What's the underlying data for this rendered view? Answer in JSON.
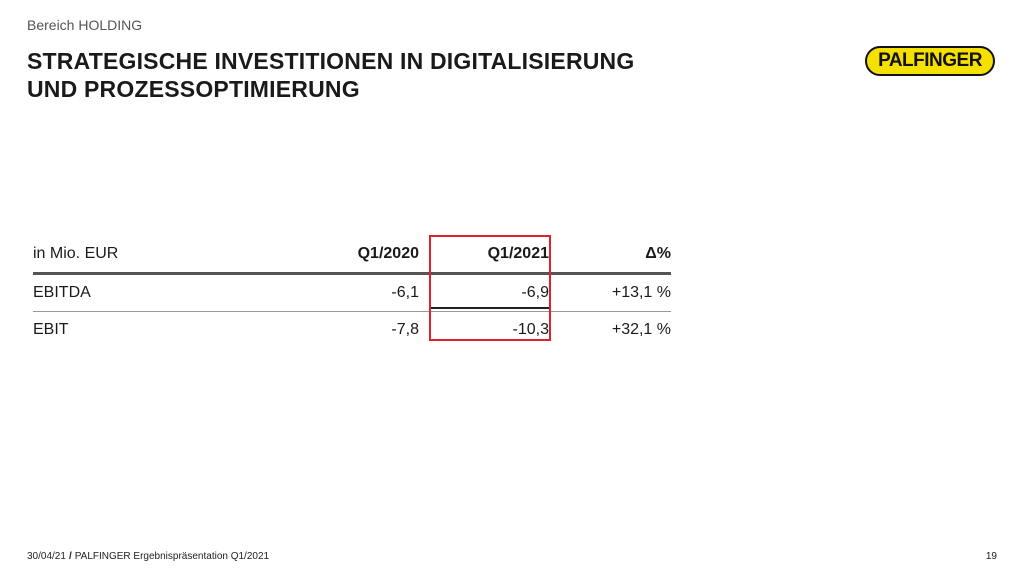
{
  "section": "Bereich HOLDING",
  "title_line1": "STRATEGISCHE INVESTITIONEN IN DIGITALISIERUNG",
  "title_line2": "UND PROZESSOPTIMIERUNG",
  "logo": "PALFINGER",
  "colors": {
    "logo_yellow": "#f5e000",
    "highlight": "#e0202a"
  },
  "table": {
    "headers": [
      "in Mio. EUR",
      "Q1/2020",
      "Q1/2021",
      "Δ%"
    ],
    "rows": [
      [
        "EBITDA",
        "-6,1",
        "-6,9",
        "+13,1 %"
      ],
      [
        "EBIT",
        "-7,8",
        "-10,3",
        "+32,1 %"
      ]
    ],
    "highlighted_column": "Q1/2021"
  },
  "footer": {
    "date": "30/04/21",
    "slash": "/",
    "text": "PALFINGER Ergebnispräsentation Q1/2021",
    "page": "19"
  }
}
